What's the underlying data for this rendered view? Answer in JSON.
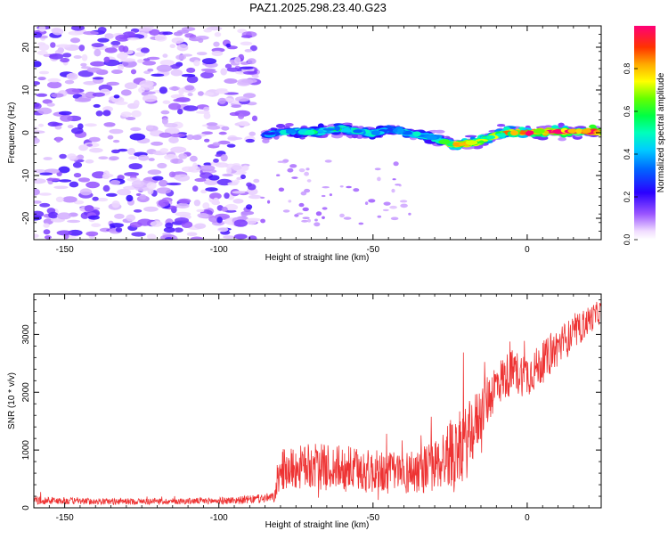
{
  "title": "PAZ1.2025.298.23.40.G23",
  "chart_data": [
    {
      "type": "heatmap",
      "xlabel": "Height of straight line (km)",
      "ylabel": "Frequency (Hz)",
      "xlim": [
        -160,
        24
      ],
      "ylim": [
        -25,
        25
      ],
      "xticks": [
        -150,
        -100,
        -50,
        0
      ],
      "yticks": [
        -20,
        -10,
        0,
        10,
        20
      ],
      "colorbar": {
        "label": "Normalized spectral amplitude",
        "range": [
          0,
          1
        ],
        "ticks": [
          "0.0",
          "0.2",
          "0.4",
          "0.6",
          "0.8"
        ]
      },
      "signal_track": {
        "heights": [
          -85,
          -78,
          -70,
          -60,
          -50,
          -45,
          -40,
          -35,
          -30,
          -25,
          -22,
          -15,
          -10,
          -5,
          0,
          5,
          10,
          15,
          20,
          24
        ],
        "frequencies": [
          -0.5,
          0.3,
          0.2,
          1.0,
          -0.3,
          0.8,
          0.2,
          -0.5,
          -1.2,
          -2.5,
          -2.8,
          -2.0,
          -0.5,
          0.1,
          0.0,
          0.2,
          0.3,
          0.3,
          0.2,
          0.0
        ],
        "amplitudes": [
          0.3,
          0.4,
          0.45,
          0.45,
          0.4,
          0.35,
          0.4,
          0.4,
          0.45,
          0.55,
          0.75,
          0.65,
          0.6,
          0.75,
          0.85,
          0.9,
          0.9,
          0.88,
          0.85,
          0.85
        ]
      },
      "noise_region_km": [
        -160,
        -88
      ]
    },
    {
      "type": "line",
      "xlabel": "Height of straight line (km)",
      "ylabel": "SNR (10 * v/v)",
      "xlim": [
        -160,
        24
      ],
      "ylim": [
        0,
        3700
      ],
      "xticks": [
        -150,
        -100,
        -50,
        0
      ],
      "yticks": [
        0,
        1000,
        2000,
        3000
      ],
      "series": [
        {
          "name": "SNR",
          "color": "#ee3333",
          "x": [
            -160,
            -150,
            -140,
            -130,
            -120,
            -110,
            -100,
            -90,
            -82,
            -80,
            -70,
            -60,
            -50,
            -40,
            -30,
            -25,
            -20,
            -15,
            -10,
            -5,
            0,
            5,
            10,
            15,
            20,
            24
          ],
          "mean": [
            130,
            120,
            110,
            110,
            110,
            115,
            120,
            140,
            180,
            650,
            720,
            680,
            620,
            600,
            720,
            950,
            1100,
            1650,
            2150,
            2350,
            2300,
            2500,
            2800,
            3000,
            3250,
            3400
          ],
          "spread": [
            70,
            60,
            55,
            55,
            55,
            55,
            60,
            70,
            90,
            350,
            400,
            400,
            380,
            380,
            450,
            600,
            650,
            500,
            400,
            400,
            380,
            350,
            350,
            300,
            250,
            200
          ]
        }
      ]
    }
  ]
}
